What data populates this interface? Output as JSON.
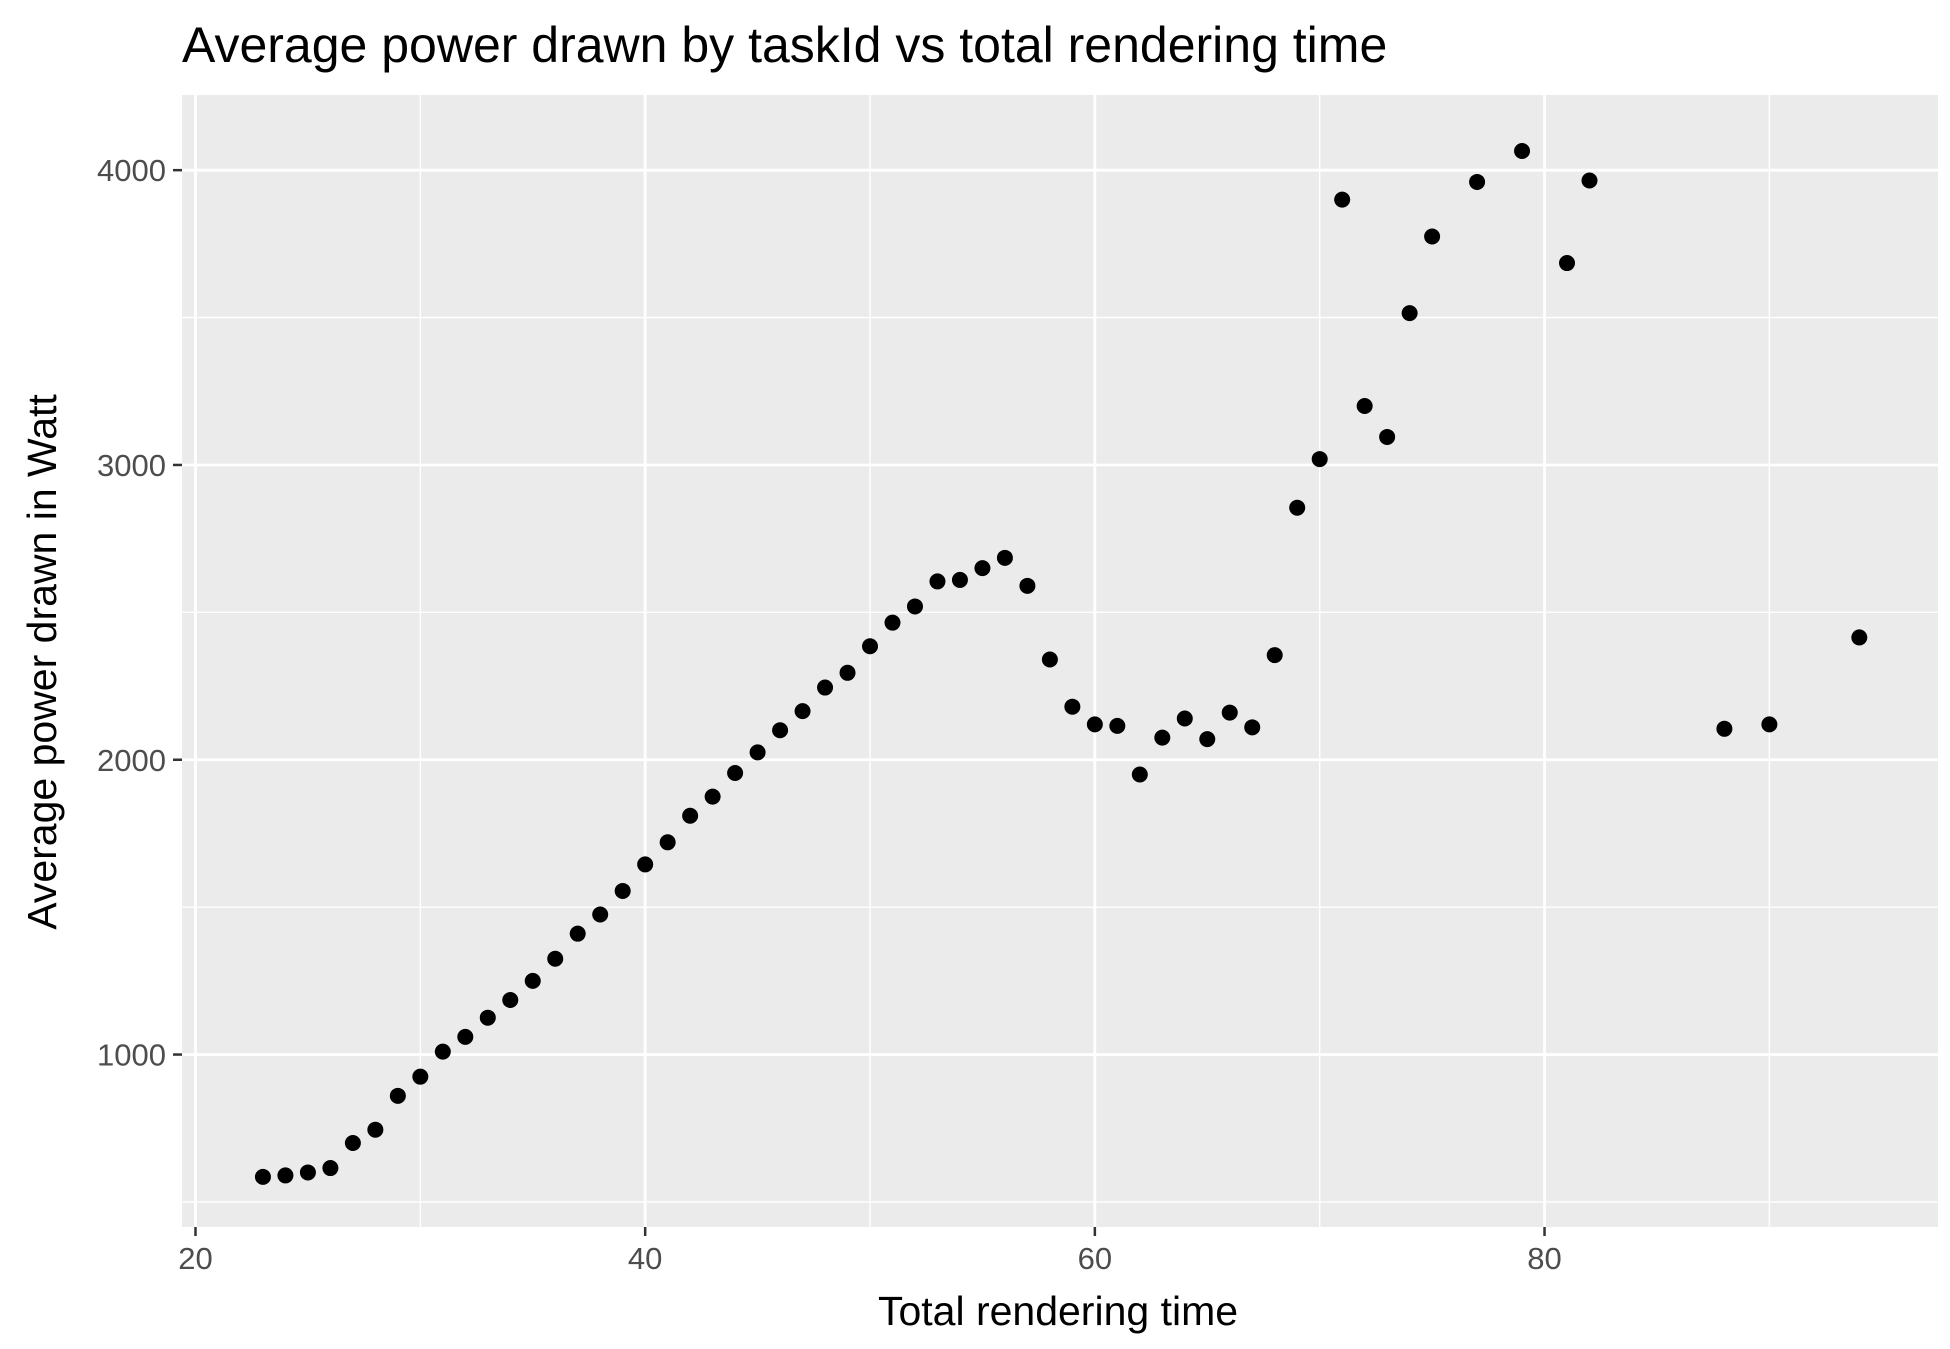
{
  "chart_data": {
    "type": "scatter",
    "title": "Average power drawn by taskId vs total rendering time",
    "xlabel": "Total rendering time",
    "ylabel": "Average power drawn in Watt",
    "xlim": [
      19.4,
      97.5
    ],
    "ylim": [
      415,
      4255
    ],
    "x_ticks": [
      20,
      40,
      60,
      80
    ],
    "x_tick_labels": [
      "20",
      "40",
      "60",
      "80"
    ],
    "y_ticks": [
      1000,
      2000,
      3000,
      4000
    ],
    "y_tick_labels": [
      "1000",
      "2000",
      "3000",
      "4000"
    ],
    "grid": true,
    "legend": "none",
    "colors": {
      "panel": "#ebebeb",
      "grid": "#ffffff",
      "point": "#000000",
      "tick_label": "#4d4d4d",
      "tick_mark": "#333333"
    },
    "series": [
      {
        "x": [
          23,
          24,
          25,
          26,
          27,
          28,
          29,
          30,
          31,
          32,
          33,
          34,
          35,
          36,
          37,
          38,
          39,
          40,
          41,
          42,
          43,
          44,
          45,
          46,
          47,
          48,
          49,
          50,
          51,
          52,
          53,
          54,
          55,
          56,
          57,
          58,
          59,
          60,
          61,
          62,
          63,
          64,
          65,
          66,
          67,
          68,
          69,
          70,
          71,
          72,
          73,
          74,
          75,
          77,
          79,
          81,
          82,
          88,
          90,
          94
        ],
        "y": [
          585,
          590,
          600,
          615,
          700,
          745,
          860,
          925,
          1010,
          1060,
          1125,
          1185,
          1250,
          1325,
          1410,
          1475,
          1555,
          1645,
          1720,
          1810,
          1875,
          1955,
          2025,
          2100,
          2165,
          2245,
          2295,
          2385,
          2465,
          2520,
          2605,
          2610,
          2650,
          2685,
          2590,
          2340,
          2180,
          2120,
          2115,
          1950,
          2075,
          2140,
          2070,
          2160,
          2110,
          2355,
          2855,
          3020,
          3900,
          3200,
          3095,
          3515,
          3775,
          3960,
          4065,
          3685,
          3965,
          2105,
          2120,
          2415
        ]
      }
    ]
  }
}
